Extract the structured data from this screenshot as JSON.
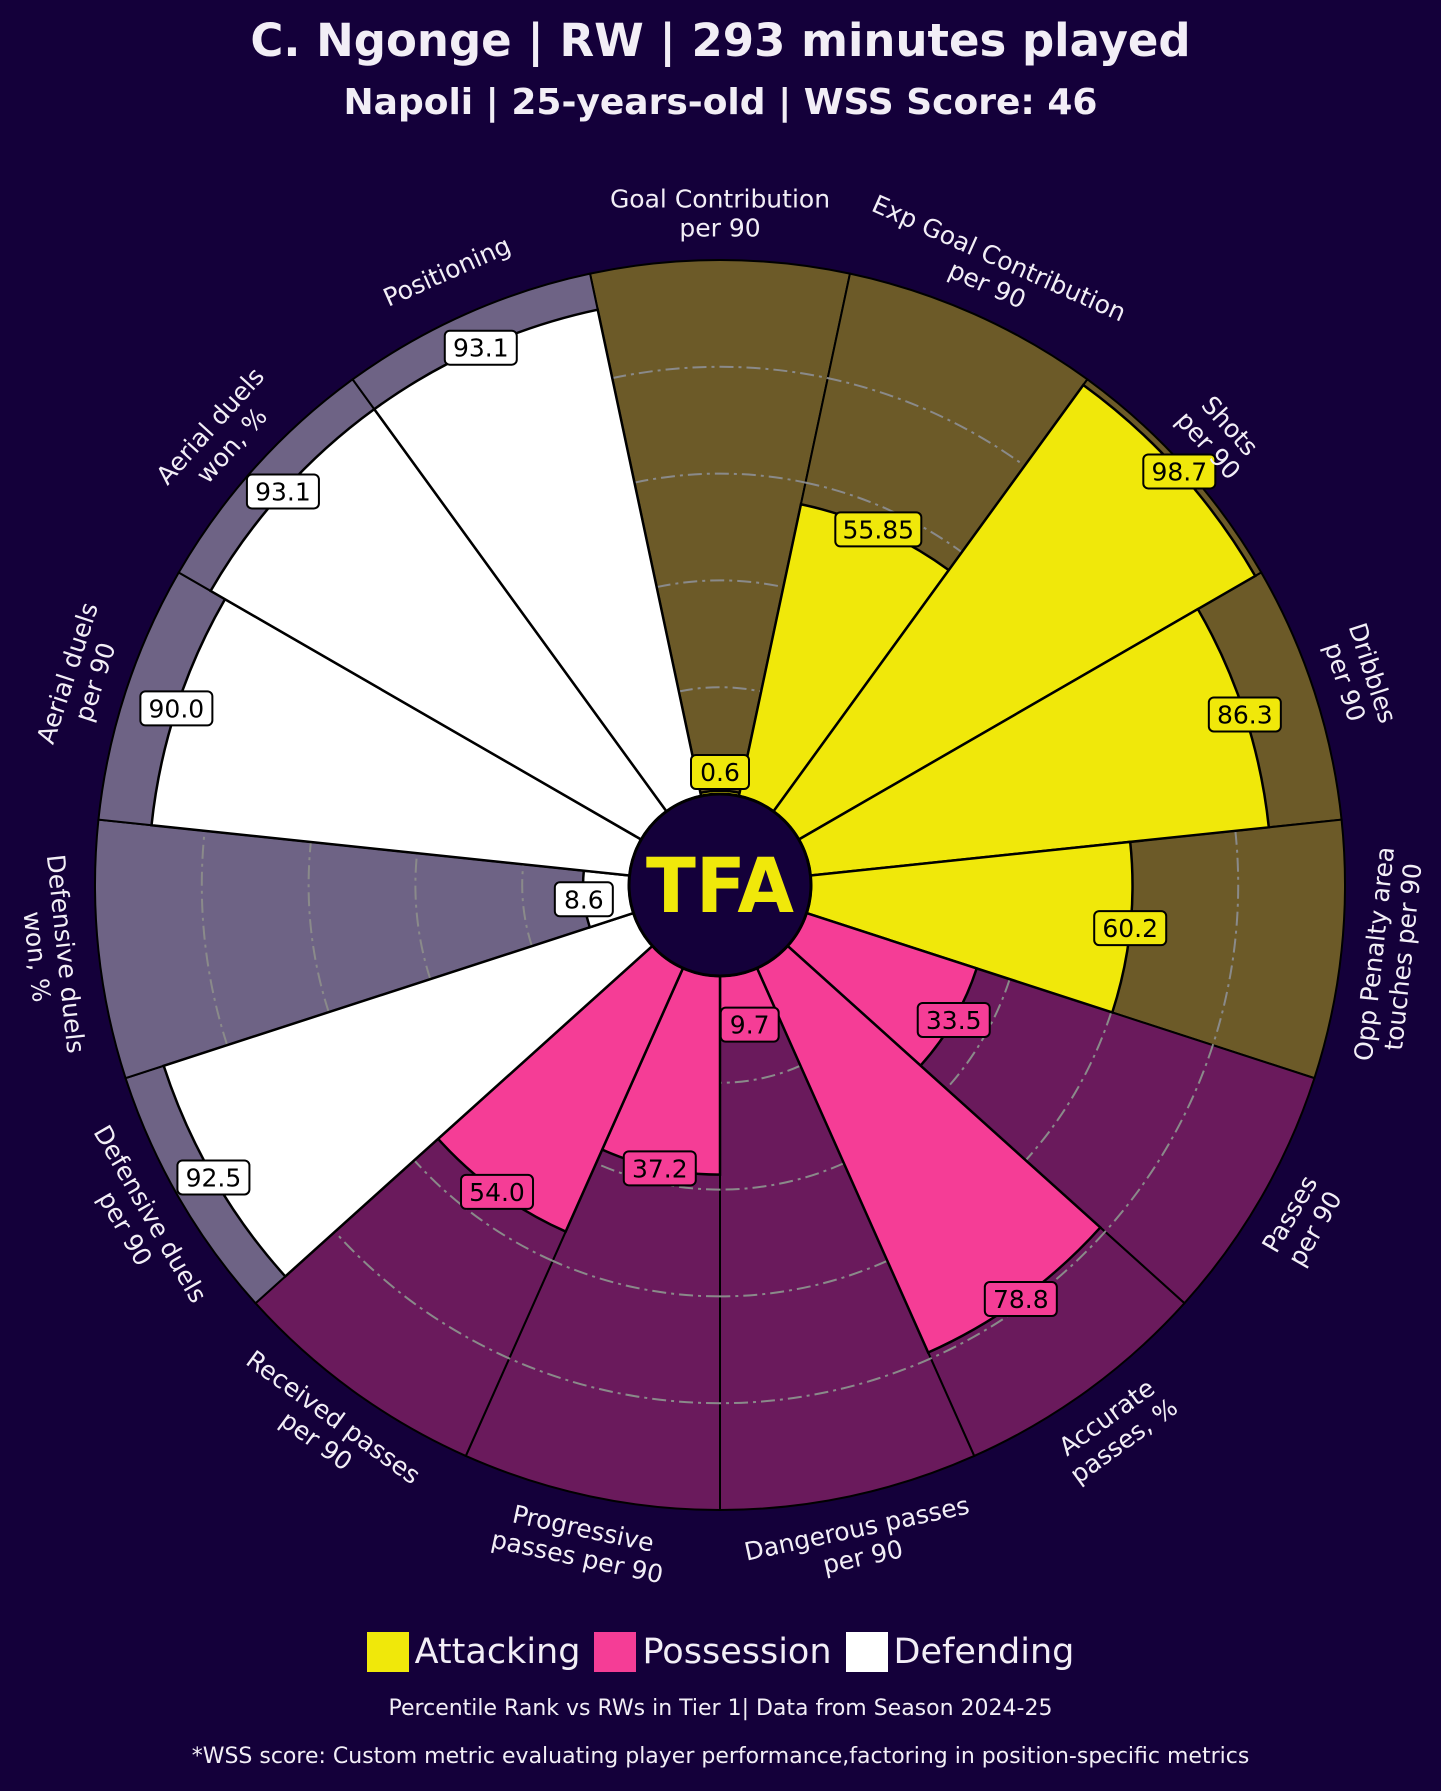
{
  "header": {
    "title": "C. Ngonge | RW | 293 minutes played",
    "subtitle": "Napoli | 25-years-old | WSS Score: 46"
  },
  "logo": {
    "text": "TFA"
  },
  "colors": {
    "background": "#14003a",
    "Attacking": {
      "fill": "#f0e80a",
      "bg": "#6c5a28"
    },
    "Possession": {
      "fill": "#f53d96",
      "bg": "#6a1a5c"
    },
    "Defending": {
      "fill": "#ffffff",
      "bg": "#6e6385"
    },
    "grid": "#8a8a8a",
    "logo": "#f0e80a"
  },
  "legend": [
    {
      "label": "Attacking",
      "color": "#f0e80a"
    },
    {
      "label": "Possession",
      "color": "#f53d96"
    },
    {
      "label": "Defending",
      "color": "#ffffff"
    }
  ],
  "footer": {
    "note": "Percentile Rank vs RWs in Tier 1| Data from Season 2024-25",
    "wss": "*WSS score: Custom metric evaluating player performance,factoring in position-specific metrics"
  },
  "chart_data": {
    "type": "pizza",
    "title": "C. Ngonge | RW | 293 minutes played",
    "range": [
      0,
      100
    ],
    "gridlines": [
      20,
      40,
      60,
      80
    ],
    "metrics": [
      {
        "label": [
          "Goal Contribution",
          "per 90"
        ],
        "value": 0.6,
        "display": "0.6",
        "category": "Attacking"
      },
      {
        "label": [
          "Exp Goal Contribution",
          "per 90"
        ],
        "value": 55.85,
        "display": "55.85",
        "category": "Attacking"
      },
      {
        "label": [
          "Shots",
          "per 90"
        ],
        "value": 98.7,
        "display": "98.7",
        "category": "Attacking"
      },
      {
        "label": [
          "Dribbles",
          "per 90"
        ],
        "value": 86.3,
        "display": "86.3",
        "category": "Attacking"
      },
      {
        "label": [
          "Opp Penalty area",
          "touches per 90"
        ],
        "value": 60.2,
        "display": "60.2",
        "category": "Attacking"
      },
      {
        "label": [
          "Passes",
          "per 90"
        ],
        "value": 33.5,
        "display": "33.5",
        "category": "Possession"
      },
      {
        "label": [
          "Accurate",
          "passes, %"
        ],
        "value": 78.8,
        "display": "78.8",
        "category": "Possession"
      },
      {
        "label": [
          "Dangerous passes",
          "per 90"
        ],
        "value": 9.7,
        "display": "9.7",
        "category": "Possession"
      },
      {
        "label": [
          "Progressive",
          "passes per 90"
        ],
        "value": 37.2,
        "display": "37.2",
        "category": "Possession"
      },
      {
        "label": [
          "Received passes",
          "per 90"
        ],
        "value": 54.0,
        "display": "54.0",
        "category": "Possession"
      },
      {
        "label": [
          "Defensive duels",
          "per 90"
        ],
        "value": 92.5,
        "display": "92.5",
        "category": "Defending"
      },
      {
        "label": [
          "Defensive duels",
          "won, %"
        ],
        "value": 8.6,
        "display": "8.6",
        "category": "Defending"
      },
      {
        "label": [
          "Aerial duels",
          "per 90"
        ],
        "value": 90.0,
        "display": "90.0",
        "category": "Defending"
      },
      {
        "label": [
          "Aerial duels",
          "won, %"
        ],
        "value": 93.1,
        "display": "93.1",
        "category": "Defending"
      },
      {
        "label": [
          "Positioning"
        ],
        "value": 93.1,
        "display": "93.1",
        "category": "Defending"
      }
    ]
  }
}
